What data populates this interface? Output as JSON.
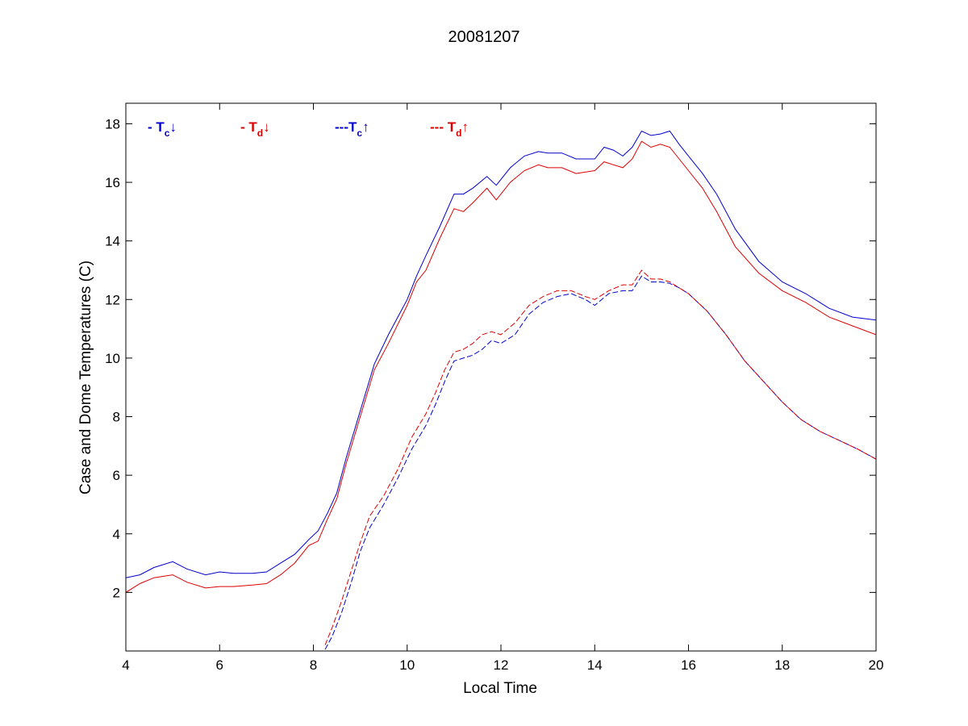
{
  "chart_data": {
    "type": "line",
    "title": "20081207",
    "xlabel": "Local Time",
    "ylabel": "Case and Dome Temperatures (C)",
    "xlim": [
      4,
      20
    ],
    "ylim": [
      0,
      18.7
    ],
    "xticks": [
      4,
      6,
      8,
      10,
      12,
      14,
      16,
      18,
      20
    ],
    "yticks": [
      2,
      4,
      6,
      8,
      10,
      12,
      14,
      16,
      18
    ],
    "grid": false,
    "legend_position": "top-left",
    "legend": [
      {
        "prefix": "- T",
        "sub": "c",
        "arrow": "↓",
        "color": "#0000cc"
      },
      {
        "prefix": "- T",
        "sub": "d",
        "arrow": "↓",
        "color": "#dd0000"
      },
      {
        "prefix": "---T",
        "sub": "c",
        "arrow": "↑",
        "color": "#0000cc"
      },
      {
        "prefix": "--- T",
        "sub": "d",
        "arrow": "↑",
        "color": "#dd0000"
      }
    ],
    "series": [
      {
        "color": "#0000cc",
        "dash": false,
        "x": [
          4.0,
          4.3,
          4.6,
          5.0,
          5.3,
          5.7,
          6.0,
          6.3,
          6.7,
          7.0,
          7.3,
          7.6,
          7.9,
          8.1,
          8.3,
          8.5,
          8.7,
          9.0,
          9.3,
          9.6,
          10.0,
          10.2,
          10.4,
          10.7,
          11.0,
          11.2,
          11.4,
          11.7,
          11.9,
          12.2,
          12.5,
          12.8,
          13.0,
          13.3,
          13.6,
          14.0,
          14.2,
          14.4,
          14.6,
          14.8,
          15.0,
          15.2,
          15.4,
          15.6,
          15.8,
          16.0,
          16.3,
          16.6,
          17.0,
          17.5,
          18.0,
          18.5,
          19.0,
          19.5,
          20.0
        ],
        "y": [
          2.5,
          2.6,
          2.85,
          3.05,
          2.8,
          2.6,
          2.7,
          2.65,
          2.65,
          2.7,
          3.0,
          3.3,
          3.8,
          4.1,
          4.7,
          5.4,
          6.6,
          8.2,
          9.8,
          10.8,
          12.0,
          12.8,
          13.5,
          14.5,
          15.6,
          15.6,
          15.8,
          16.2,
          15.9,
          16.5,
          16.9,
          17.05,
          17.0,
          17.0,
          16.8,
          16.8,
          17.2,
          17.1,
          16.9,
          17.2,
          17.75,
          17.6,
          17.65,
          17.75,
          17.3,
          16.9,
          16.3,
          15.6,
          14.4,
          13.3,
          12.6,
          12.2,
          11.7,
          11.4,
          11.3
        ]
      },
      {
        "color": "#dd0000",
        "dash": false,
        "x": [
          4.0,
          4.3,
          4.6,
          5.0,
          5.3,
          5.7,
          6.0,
          6.3,
          6.7,
          7.0,
          7.3,
          7.6,
          7.9,
          8.1,
          8.3,
          8.5,
          8.7,
          9.0,
          9.3,
          9.6,
          10.0,
          10.2,
          10.4,
          10.7,
          11.0,
          11.2,
          11.4,
          11.7,
          11.9,
          12.2,
          12.5,
          12.8,
          13.0,
          13.3,
          13.6,
          14.0,
          14.2,
          14.4,
          14.6,
          14.8,
          15.0,
          15.2,
          15.4,
          15.6,
          15.8,
          16.0,
          16.3,
          16.6,
          17.0,
          17.5,
          18.0,
          18.5,
          19.0,
          19.5,
          20.0
        ],
        "y": [
          2.0,
          2.3,
          2.5,
          2.6,
          2.35,
          2.15,
          2.2,
          2.2,
          2.25,
          2.3,
          2.6,
          3.0,
          3.6,
          3.75,
          4.5,
          5.2,
          6.4,
          8.0,
          9.6,
          10.5,
          11.8,
          12.6,
          13.0,
          14.1,
          15.1,
          15.0,
          15.3,
          15.8,
          15.4,
          16.0,
          16.4,
          16.6,
          16.5,
          16.5,
          16.3,
          16.4,
          16.7,
          16.6,
          16.5,
          16.8,
          17.4,
          17.2,
          17.3,
          17.2,
          16.8,
          16.4,
          15.8,
          15.0,
          13.8,
          12.9,
          12.3,
          11.9,
          11.4,
          11.1,
          10.8
        ]
      },
      {
        "color": "#0000cc",
        "dash": true,
        "x": [
          8.25,
          8.4,
          8.6,
          8.8,
          9.0,
          9.2,
          9.5,
          9.8,
          10.1,
          10.4,
          10.6,
          10.8,
          11.0,
          11.2,
          11.4,
          11.6,
          11.8,
          12.0,
          12.3,
          12.6,
          12.9,
          13.2,
          13.5,
          13.8,
          14.0,
          14.3,
          14.6,
          14.8,
          15.0,
          15.2,
          15.4,
          15.6,
          15.8,
          16.0,
          16.4,
          16.8,
          17.2,
          17.6,
          18.0,
          18.4,
          18.8,
          19.2,
          19.6,
          20.0
        ],
        "y": [
          0.05,
          0.5,
          1.3,
          2.3,
          3.4,
          4.2,
          5.0,
          5.9,
          6.9,
          7.7,
          8.4,
          9.2,
          9.9,
          10.0,
          10.1,
          10.3,
          10.6,
          10.5,
          10.8,
          11.5,
          11.9,
          12.1,
          12.2,
          12.0,
          11.8,
          12.2,
          12.3,
          12.3,
          12.8,
          12.6,
          12.6,
          12.55,
          12.4,
          12.2,
          11.6,
          10.8,
          9.9,
          9.2,
          8.5,
          7.9,
          7.5,
          7.2,
          6.9,
          6.55
        ]
      },
      {
        "color": "#dd0000",
        "dash": true,
        "x": [
          8.25,
          8.4,
          8.6,
          8.8,
          9.0,
          9.2,
          9.5,
          9.8,
          10.1,
          10.4,
          10.6,
          10.8,
          11.0,
          11.2,
          11.4,
          11.6,
          11.8,
          12.0,
          12.3,
          12.6,
          12.9,
          13.2,
          13.5,
          13.8,
          14.0,
          14.3,
          14.6,
          14.8,
          15.0,
          15.2,
          15.4,
          15.6,
          15.8,
          16.0,
          16.4,
          16.8,
          17.2,
          17.6,
          18.0,
          18.4,
          18.8,
          19.2,
          19.6,
          20.0
        ],
        "y": [
          0.2,
          0.8,
          1.7,
          2.7,
          3.7,
          4.6,
          5.3,
          6.2,
          7.3,
          8.1,
          8.8,
          9.6,
          10.2,
          10.3,
          10.5,
          10.8,
          10.9,
          10.8,
          11.2,
          11.8,
          12.1,
          12.3,
          12.3,
          12.1,
          12.0,
          12.3,
          12.5,
          12.5,
          13.0,
          12.7,
          12.7,
          12.6,
          12.4,
          12.2,
          11.6,
          10.8,
          9.9,
          9.2,
          8.5,
          7.9,
          7.5,
          7.2,
          6.9,
          6.55
        ]
      }
    ]
  }
}
